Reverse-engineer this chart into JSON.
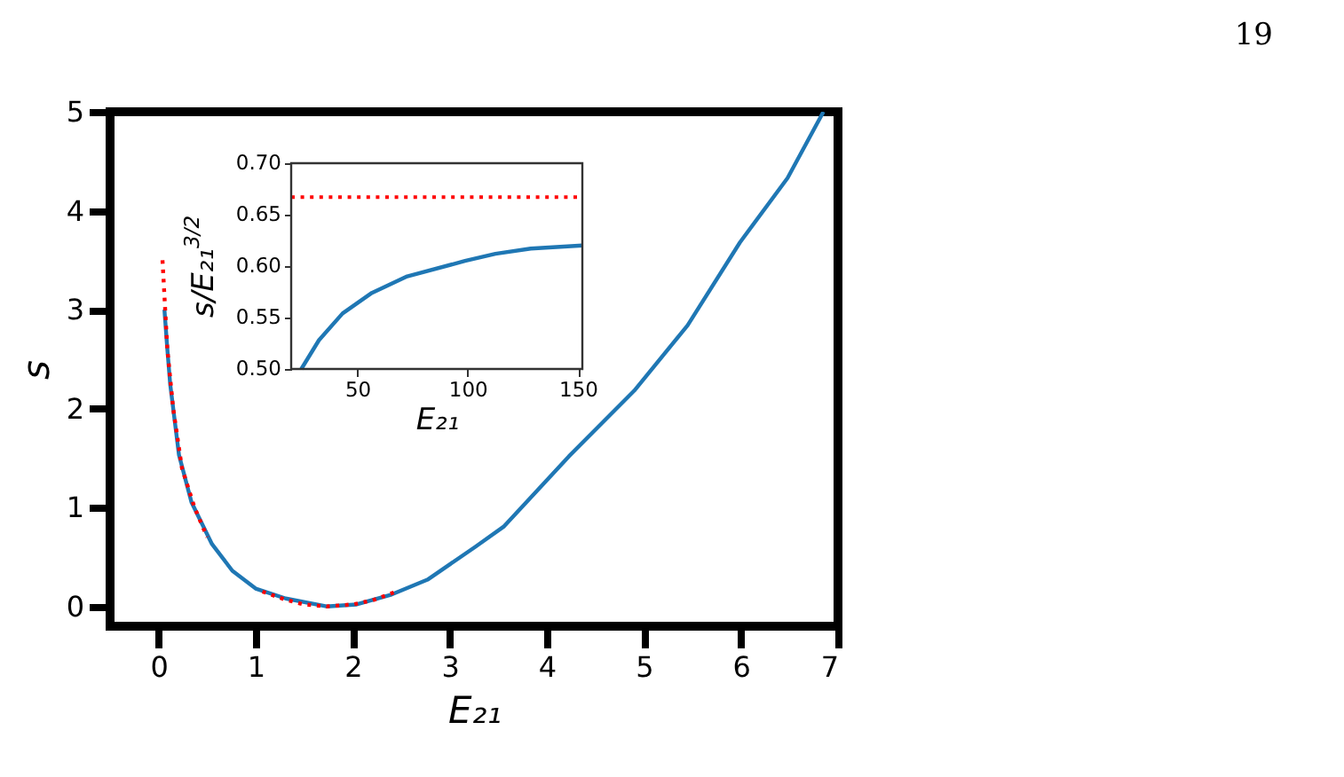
{
  "chart_data": [
    {
      "type": "line",
      "xlabel": "E₂₁",
      "ylabel": "s",
      "xlim": [
        -0.5,
        7
      ],
      "ylim": [
        -0.2,
        5
      ],
      "xticks": [
        0,
        1,
        2,
        3,
        4,
        5,
        6,
        7
      ],
      "yticks": [
        0,
        1,
        2,
        3,
        4,
        5
      ],
      "annotations": [
        "19"
      ],
      "series": [
        {
          "color": "#1f77b4",
          "line_style": "solid",
          "x": [
            0.06,
            0.09,
            0.12,
            0.21,
            0.34,
            0.55,
            0.76,
            1.0,
            1.31,
            1.73,
            2.04,
            2.4,
            2.77,
            3.26,
            3.56,
            4.23,
            4.9,
            5.45,
            5.99,
            6.48,
            6.85
          ],
          "values": [
            3.0,
            2.6,
            2.24,
            1.53,
            1.05,
            0.63,
            0.36,
            0.18,
            0.08,
            0.0,
            0.02,
            0.12,
            0.27,
            0.6,
            0.81,
            1.52,
            2.18,
            2.84,
            3.68,
            4.33,
            5.0
          ]
        },
        {
          "color": "#ff0000",
          "line_style": "dotted",
          "x": [
            0.04,
            0.09,
            0.15,
            0.24,
            0.37,
            0.5
          ],
          "values": [
            3.5,
            2.6,
            2.0,
            1.4,
            1.0,
            0.7
          ]
        },
        {
          "color": "#ff0000",
          "line_style": "dotted",
          "x": [
            1.07,
            1.3,
            1.5,
            1.73,
            2.0,
            2.2,
            2.45
          ],
          "values": [
            0.15,
            0.07,
            0.02,
            0.0,
            0.02,
            0.06,
            0.15
          ]
        }
      ]
    },
    {
      "type": "line",
      "xlabel": "E₂₁",
      "ylabel": "s/E₂₁$^{3/2}$",
      "xlim": [
        20,
        152
      ],
      "ylim": [
        0.5,
        0.7
      ],
      "xticks": [
        50,
        100,
        150
      ],
      "yticks": [
        {
          "value": 0.5,
          "label": "0.50"
        },
        0.55,
        {
          "value": 0.6,
          "label": "0.60"
        },
        0.65,
        {
          "value": 0.7,
          "label": "0.70"
        }
      ],
      "ref_lines": [
        {
          "axis": "y",
          "value": 0.667,
          "color": "#ff0000",
          "line_style": "dotted"
        }
      ],
      "series": [
        {
          "color": "#1f77b4",
          "line_style": "solid",
          "x": [
            24.6,
            32.6,
            43.3,
            56.6,
            72.6,
            98.8,
            112.6,
            128.6,
            152
          ],
          "values": [
            0.5,
            0.528,
            0.554,
            0.574,
            0.59,
            0.605,
            0.612,
            0.617,
            0.62
          ]
        }
      ]
    }
  ]
}
